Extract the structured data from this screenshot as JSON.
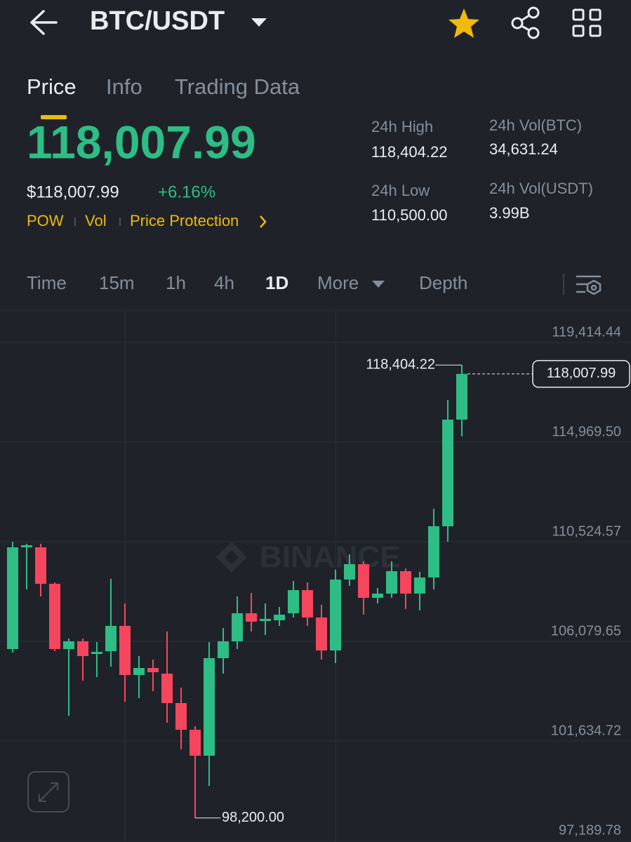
{
  "header": {
    "pair": "BTC/USDT"
  },
  "tabs": [
    "Price",
    "Info",
    "Trading Data"
  ],
  "ticker": {
    "price": "118,007.99",
    "fiat_price": "$118,007.99",
    "change": "+6.16%",
    "tags": [
      "POW",
      "Vol",
      "Price Protection"
    ]
  },
  "stats": [
    {
      "label": "24h High",
      "value": "118,404.22"
    },
    {
      "label": "24h Vol(BTC)",
      "value": "34,631.24"
    },
    {
      "label": "24h Low",
      "value": "110,500.00"
    },
    {
      "label": "24h Vol(USDT)",
      "value": "3.99B"
    }
  ],
  "intervals": [
    "Time",
    "15m",
    "1h",
    "4h",
    "1D",
    "More",
    "Depth"
  ],
  "active_interval": 4,
  "watermark": "BINANCE",
  "chart_data": {
    "type": "candlestick",
    "categories": [
      null,
      null,
      null,
      null,
      null,
      null,
      null,
      null,
      null,
      null,
      null,
      null,
      null,
      null,
      null,
      null,
      null,
      null,
      null,
      null,
      null,
      null,
      null,
      null,
      null,
      null,
      null,
      null,
      null,
      null,
      null,
      null,
      null
    ],
    "open": [
      105735,
      110273,
      110273,
      108646,
      105735,
      106079,
      105516,
      105641,
      106768,
      104577,
      104890,
      104639,
      103325,
      102135,
      100977,
      105328,
      106079,
      107331,
      106987,
      107018,
      107331,
      108364,
      107143,
      105672,
      108834,
      109522,
      108020,
      108208,
      109209,
      108208,
      108928,
      111212,
      115970
    ],
    "high": [
      110524,
      110430,
      110430,
      108708,
      106204,
      106204,
      106048,
      108865,
      107769,
      105422,
      105265,
      106517,
      104013,
      102292,
      106048,
      106674,
      108082,
      108239,
      107769,
      107613,
      108771,
      108708,
      107707,
      109272,
      109960,
      109647,
      108458,
      109647,
      109334,
      109178,
      111995,
      116846,
      118404.22
    ],
    "low": [
      105578,
      108395,
      108082,
      105641,
      102761,
      104326,
      104483,
      104952,
      103387,
      103544,
      103857,
      102448,
      101259,
      98200,
      99631,
      104639,
      105735,
      106517,
      106361,
      106768,
      107143,
      106768,
      105265,
      105109,
      108552,
      107269,
      107769,
      108020,
      107519,
      107456,
      108395,
      110524,
      115219
    ],
    "close": [
      110273,
      110367,
      108646,
      105735,
      106079,
      105422,
      105610,
      106768,
      104577,
      104890,
      104702,
      103325,
      102135,
      100977,
      105328,
      106079,
      107331,
      106956,
      107081,
      107269,
      108364,
      107143,
      105672,
      108834,
      109522,
      108020,
      108208,
      109209,
      108208,
      108928,
      111212,
      115970,
      118007.99
    ],
    "up_color": "#2ebd85",
    "down_color": "#f6465d",
    "ylim": [
      97189.78,
      120823
    ],
    "yticks": [
      {
        "value": 97189.78,
        "label": "97,189.78"
      },
      {
        "value": 101634.72,
        "label": "101,634.72"
      },
      {
        "value": 106079.65,
        "label": "106,079.65"
      },
      {
        "value": 110524.57,
        "label": "110,524.57"
      },
      {
        "value": 114969.5,
        "label": "114,969.50"
      },
      {
        "value": 119414.44,
        "label": "119,414.44"
      }
    ],
    "grid": true,
    "annotations": [
      {
        "value": 118404.22,
        "label": "118,404.22"
      },
      {
        "value": 98200,
        "label": "98,200.00"
      }
    ],
    "last_price": {
      "value": 118007.99,
      "label": "118,007.99"
    }
  }
}
